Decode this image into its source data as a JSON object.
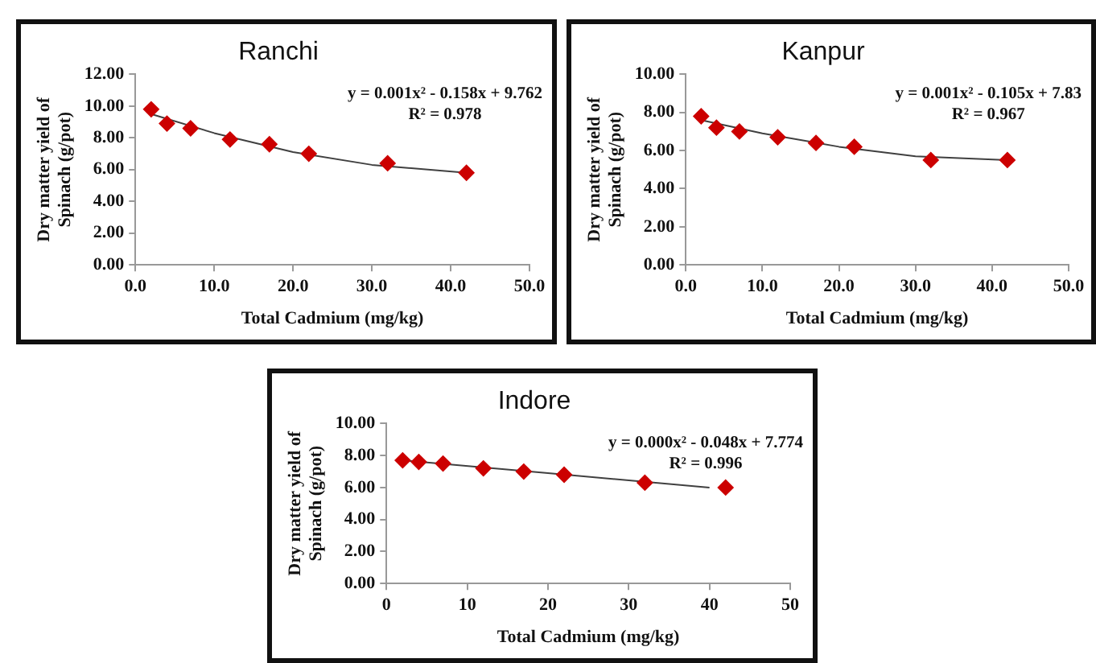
{
  "chart_data": [
    {
      "type": "scatter",
      "title": "Ranchi",
      "xlabel": "Total Cadmium (mg/kg)",
      "ylabel": "Dry matter yield of Spinach (g/pot)",
      "xlim": [
        0,
        50
      ],
      "xticks": [
        {
          "value": 0,
          "label": "0.0"
        },
        {
          "value": 10,
          "label": "10.0"
        },
        {
          "value": 20,
          "label": "20.0"
        },
        {
          "value": 30,
          "label": "30.0"
        },
        {
          "value": 40,
          "label": "40.0"
        },
        {
          "value": 50,
          "label": "50.0"
        }
      ],
      "ylim": [
        0,
        12
      ],
      "yticks": [
        {
          "value": 0,
          "label": "0.00"
        },
        {
          "value": 2,
          "label": "2.00"
        },
        {
          "value": 4,
          "label": "4.00"
        },
        {
          "value": 6,
          "label": "6.00"
        },
        {
          "value": 8,
          "label": "8.00"
        },
        {
          "value": 10,
          "label": "10.00"
        },
        {
          "value": 12,
          "label": "12.00"
        }
      ],
      "annotations": [
        "y = 0.001x² - 0.158x + 9.762",
        "R² = 0.978"
      ],
      "legend": false,
      "grid": false,
      "series": [
        {
          "color": "#cc0000",
          "marker": "diamond",
          "x": [
            2,
            4,
            7,
            12,
            17,
            22,
            32,
            42
          ],
          "values": [
            9.8,
            8.9,
            8.6,
            7.9,
            7.6,
            7.0,
            6.4,
            5.8
          ]
        },
        {
          "type": "line",
          "color": "#404040",
          "marker": "none",
          "x": [
            2,
            10,
            20,
            30,
            42
          ],
          "values": [
            9.5,
            8.3,
            7.1,
            6.3,
            5.8
          ]
        }
      ]
    },
    {
      "type": "scatter",
      "title": "Kanpur",
      "xlabel": "Total Cadmium (mg/kg)",
      "ylabel": "Dry matter yield of Spinach (g/pot)",
      "xlim": [
        0,
        50
      ],
      "xticks": [
        {
          "value": 0,
          "label": "0.0"
        },
        {
          "value": 10,
          "label": "10.0"
        },
        {
          "value": 20,
          "label": "20.0"
        },
        {
          "value": 30,
          "label": "30.0"
        },
        {
          "value": 40,
          "label": "40.0"
        },
        {
          "value": 50,
          "label": "50.0"
        }
      ],
      "ylim": [
        0,
        10
      ],
      "yticks": [
        {
          "value": 0,
          "label": "0.00"
        },
        {
          "value": 2,
          "label": "2.00"
        },
        {
          "value": 4,
          "label": "4.00"
        },
        {
          "value": 6,
          "label": "6.00"
        },
        {
          "value": 8,
          "label": "8.00"
        },
        {
          "value": 10,
          "label": "10.00"
        }
      ],
      "annotations": [
        "y = 0.001x² - 0.105x + 7.83",
        "R² = 0.967"
      ],
      "legend": false,
      "grid": false,
      "series": [
        {
          "color": "#cc0000",
          "marker": "diamond",
          "x": [
            2,
            4,
            7,
            12,
            17,
            22,
            32,
            42
          ],
          "values": [
            7.8,
            7.2,
            7.0,
            6.7,
            6.4,
            6.2,
            5.5,
            5.5
          ]
        },
        {
          "type": "line",
          "color": "#404040",
          "marker": "none",
          "x": [
            2,
            10,
            20,
            30,
            42
          ],
          "values": [
            7.6,
            6.9,
            6.2,
            5.7,
            5.5
          ]
        }
      ]
    },
    {
      "type": "scatter",
      "title": "Indore",
      "xlabel": "Total Cadmium (mg/kg)",
      "ylabel": "Dry matter yield of Spinach (g/pot)",
      "xlim": [
        0,
        50
      ],
      "xticks": [
        0,
        10,
        20,
        30,
        40,
        50
      ],
      "ylim": [
        0,
        10
      ],
      "yticks": [
        {
          "value": 0,
          "label": "0.00"
        },
        {
          "value": 2,
          "label": "2.00"
        },
        {
          "value": 4,
          "label": "4.00"
        },
        {
          "value": 6,
          "label": "6.00"
        },
        {
          "value": 8,
          "label": "8.00"
        },
        {
          "value": 10,
          "label": "10.00"
        }
      ],
      "annotations": [
        "y = 0.000x² - 0.048x + 7.774",
        "R² = 0.996"
      ],
      "legend": false,
      "grid": false,
      "series": [
        {
          "color": "#cc0000",
          "marker": "diamond",
          "x": [
            2,
            4,
            7,
            12,
            17,
            22,
            32,
            42
          ],
          "values": [
            7.7,
            7.6,
            7.5,
            7.2,
            7.0,
            6.8,
            6.3,
            6.0
          ]
        },
        {
          "type": "line",
          "color": "#404040",
          "marker": "none",
          "x": [
            2,
            20,
            40
          ],
          "values": [
            7.7,
            6.9,
            6.0
          ]
        }
      ]
    }
  ]
}
